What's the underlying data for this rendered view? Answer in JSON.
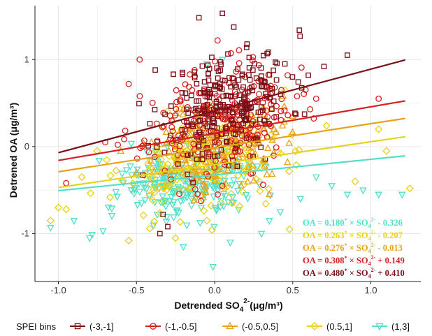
{
  "chart_data": {
    "type": "scatter",
    "xlabel": "Detrended SO",
    "xlabel_sub": "4",
    "xlabel_sup": "2-",
    "xlabel_unit": "(μg/m³)",
    "ylabel": "Detrened OA  (μg/m³)",
    "xlim": [
      -1.15,
      1.32
    ],
    "ylim": [
      -1.55,
      1.62
    ],
    "xticks": [
      -1.0,
      -0.5,
      0.0,
      0.5,
      1.0
    ],
    "xtick_labels": [
      "-1.0",
      "-0.5",
      "0.0",
      "0.5",
      "1.0"
    ],
    "yticks": [
      -1,
      0,
      1
    ],
    "ytick_labels": [
      "-1",
      "0",
      "1"
    ],
    "grid": true,
    "legend_title": "SPEI bins",
    "legend_placement": "bottom",
    "series": [
      {
        "name": "(-3,-1]",
        "marker": "square",
        "color": "#7a0f16",
        "line": {
          "slope": 0.48,
          "intercept": 0.41,
          "x": [
            -1.0,
            1.22
          ]
        },
        "equation": {
          "lhs": "OA = 0.480",
          "sup": "*",
          "mid": " × SO",
          "sub": "4",
          "sup2": "2-",
          "rhs": " + 0.410"
        },
        "cloud": {
          "cx": 0.08,
          "cy": 0.48,
          "sx": 0.2,
          "sy": 0.32,
          "n": 260,
          "seed": 11
        },
        "points": [
          [
            -0.1,
            1.48
          ],
          [
            0.05,
            1.53
          ],
          [
            0.85,
            1.05
          ],
          [
            0.45,
            0.95
          ],
          [
            -0.35,
            -1.0
          ],
          [
            -0.3,
            -0.92
          ],
          [
            -0.33,
            -0.78
          ],
          [
            0.7,
            0.92
          ],
          [
            -0.38,
            0.88
          ],
          [
            0.6,
            0.82
          ]
        ]
      },
      {
        "name": "(-1,-0.5]",
        "marker": "circle",
        "color": "#d81f1f",
        "line": {
          "slope": 0.308,
          "intercept": 0.149,
          "x": [
            -1.0,
            1.22
          ]
        },
        "equation": {
          "lhs": "OA = 0.308",
          "sup": "*",
          "mid": " × SO",
          "sub": "4",
          "sup2": "2-",
          "rhs": " + 0.149"
        },
        "cloud": {
          "cx": 0.03,
          "cy": 0.3,
          "sx": 0.24,
          "sy": 0.3,
          "n": 250,
          "seed": 23
        },
        "points": [
          [
            -0.95,
            -0.42
          ],
          [
            -0.48,
            1.0
          ],
          [
            1.05,
            0.55
          ],
          [
            -0.55,
            0.72
          ],
          [
            0.65,
            0.55
          ],
          [
            -0.7,
            0.05
          ],
          [
            0.02,
            -0.55
          ]
        ]
      },
      {
        "name": "(-0.5,0.5]",
        "marker": "triangle-up",
        "color": "#e8a21a",
        "line": {
          "slope": 0.276,
          "intercept": -0.013,
          "x": [
            -1.0,
            1.22
          ]
        },
        "equation": {
          "lhs": "OA = 0.276",
          "sup": "*",
          "mid": " × SO",
          "sub": "4",
          "sup2": "2-",
          "rhs": " - 0.013"
        },
        "cloud": {
          "cx": 0.02,
          "cy": 0.02,
          "sx": 0.2,
          "sy": 0.25,
          "n": 200,
          "seed": 37
        },
        "points": [
          [
            0.5,
            0.35
          ],
          [
            -0.5,
            -0.3
          ],
          [
            0.35,
            -0.55
          ]
        ]
      },
      {
        "name": "(0.5,1]",
        "marker": "diamond",
        "color": "#e6d21a",
        "line": {
          "slope": 0.263,
          "intercept": -0.207,
          "x": [
            -1.0,
            1.22
          ]
        },
        "equation": {
          "lhs": "OA = 0.263",
          "sup": "*",
          "mid": " × SO",
          "sub": "4",
          "sup2": "2-",
          "rhs": " - 0.207"
        },
        "cloud": {
          "cx": -0.05,
          "cy": -0.2,
          "sx": 0.28,
          "sy": 0.27,
          "n": 230,
          "seed": 53
        },
        "points": [
          [
            -1.05,
            -0.85
          ],
          [
            -1.0,
            -0.7
          ],
          [
            -0.95,
            -0.72
          ],
          [
            1.05,
            0.2
          ],
          [
            1.1,
            -0.05
          ],
          [
            1.25,
            -0.48
          ],
          [
            0.45,
            0.65
          ],
          [
            -0.85,
            -0.35
          ],
          [
            0.9,
            -0.4
          ],
          [
            0.48,
            -0.95
          ],
          [
            -0.05,
            -0.85
          ],
          [
            -0.55,
            -1.08
          ],
          [
            -0.25,
            -1.05
          ]
        ]
      },
      {
        "name": "(1,3]",
        "marker": "triangle-down",
        "color": "#4fe0c8",
        "line": {
          "slope": 0.18,
          "intercept": -0.326,
          "x": [
            -1.0,
            1.22
          ]
        },
        "equation": {
          "lhs": "OA = 0.180",
          "sup": "*",
          "mid": " × SO",
          "sub": "4",
          "sup2": "2-",
          "rhs": " - 0.326"
        },
        "cloud": {
          "cx": -0.18,
          "cy": -0.42,
          "sx": 0.25,
          "sy": 0.22,
          "n": 230,
          "seed": 71
        },
        "points": [
          [
            -1.05,
            -0.93
          ],
          [
            -0.9,
            -0.85
          ],
          [
            -0.8,
            -1.05
          ],
          [
            -0.01,
            -1.38
          ],
          [
            0.05,
            1.0
          ],
          [
            -0.05,
            0.95
          ],
          [
            0.65,
            -0.35
          ],
          [
            0.75,
            -0.45
          ],
          [
            0.85,
            -0.55
          ],
          [
            0.95,
            -0.5
          ],
          [
            1.05,
            -0.55
          ],
          [
            1.2,
            -0.55
          ],
          [
            0.1,
            -1.1
          ],
          [
            -0.2,
            -1.15
          ],
          [
            0.3,
            -1.0
          ],
          [
            0.42,
            -0.75
          ],
          [
            0.55,
            -0.6
          ],
          [
            0.35,
            -0.85
          ]
        ]
      }
    ]
  },
  "colors": {
    "axis": "#222222",
    "grid": "#e6e6e6",
    "background": "#ffffff"
  }
}
